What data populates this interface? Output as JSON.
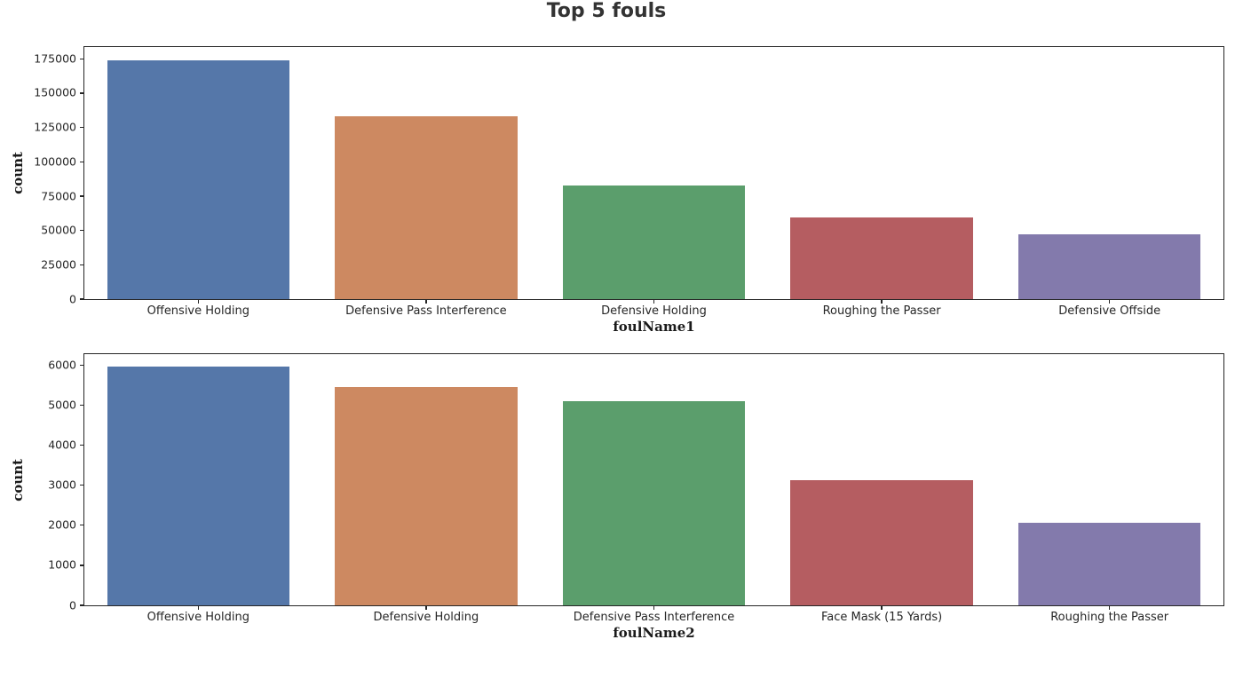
{
  "figure": {
    "title": "Top 5 fouls",
    "title_color": "#333333",
    "background": "#ffffff"
  },
  "palette": [
    "#5577a9",
    "#cd8961",
    "#5b9e6c",
    "#b55d61",
    "#837aac"
  ],
  "chart_data": [
    {
      "type": "bar",
      "title": "",
      "xlabel": "foulName1",
      "ylabel": "count",
      "categories": [
        "Offensive Holding",
        "Defensive Pass Interference",
        "Defensive Holding",
        "Roughing the Passer",
        "Defensive Offside"
      ],
      "values": [
        174000,
        133000,
        82500,
        59800,
        47000
      ],
      "bar_colors": [
        "#5577a9",
        "#cd8961",
        "#5b9e6c",
        "#b55d61",
        "#837aac"
      ],
      "yticks": [
        0,
        25000,
        50000,
        75000,
        100000,
        125000,
        150000,
        175000
      ],
      "ytick_labels": [
        "0",
        "25000",
        "50000",
        "75000",
        "100000",
        "125000",
        "150000",
        "175000"
      ],
      "ylim": [
        0,
        183600
      ],
      "grid": false,
      "legend": null
    },
    {
      "type": "bar",
      "title": "",
      "xlabel": "foulName2",
      "ylabel": "count",
      "categories": [
        "Offensive Holding",
        "Defensive Holding",
        "Defensive Pass Interference",
        "Face Mask (15 Yards)",
        "Roughing the Passer"
      ],
      "values": [
        5950,
        5450,
        5100,
        3130,
        2060
      ],
      "bar_colors": [
        "#5577a9",
        "#cd8961",
        "#5b9e6c",
        "#b55d61",
        "#837aac"
      ],
      "yticks": [
        0,
        1000,
        2000,
        3000,
        4000,
        5000,
        6000
      ],
      "ytick_labels": [
        "0",
        "1000",
        "2000",
        "3000",
        "4000",
        "5000",
        "6000"
      ],
      "ylim": [
        0,
        6270
      ],
      "grid": false,
      "legend": null
    }
  ]
}
